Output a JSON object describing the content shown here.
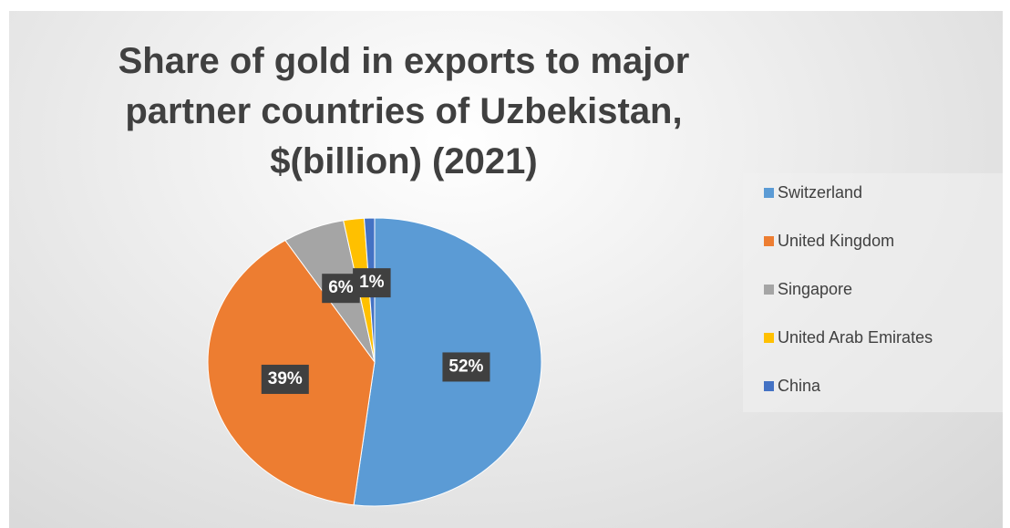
{
  "chart_data": {
    "type": "pie",
    "title": "Share of gold in exports to major partner countries of Uzbekistan, $(billion) (2021)",
    "categories": [
      "Switzerland",
      "United Kingdom",
      "Singapore",
      "United Arab Emirates",
      "China"
    ],
    "values": [
      52,
      39,
      6,
      2,
      1
    ],
    "value_labels": [
      "52%",
      "39%",
      "6%",
      null,
      "1%"
    ],
    "colors": [
      "#5b9bd5",
      "#ed7d31",
      "#a5a5a5",
      "#ffc000",
      "#4472c4"
    ],
    "legend": "right"
  }
}
